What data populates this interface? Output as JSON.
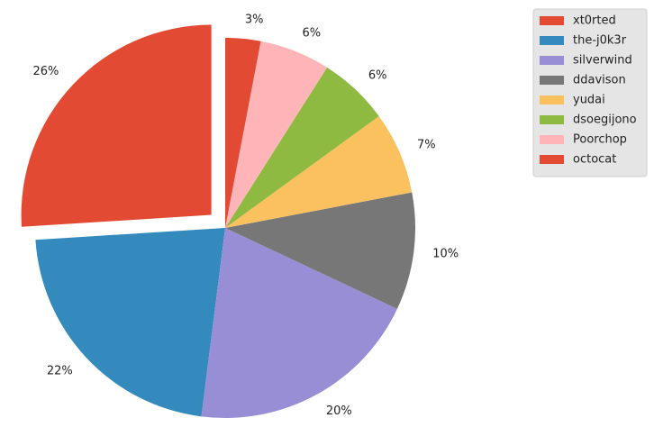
{
  "chart_data": {
    "type": "pie",
    "categories": [
      "xt0rted",
      "the-j0k3r",
      "silverwind",
      "ddavison",
      "yudai",
      "dsoegijono",
      "Poorchop",
      "octocat"
    ],
    "values": [
      26,
      22,
      20,
      10,
      7,
      6,
      6,
      3
    ],
    "value_labels": [
      "26%",
      "22%",
      "20%",
      "10%",
      "7%",
      "6%",
      "6%",
      "3%"
    ],
    "colors": [
      "#E24A33",
      "#348ABD",
      "#988ED5",
      "#777777",
      "#FBC15E",
      "#8EBA42",
      "#FFB5B8",
      "#E24A33"
    ],
    "explode": [
      0.1,
      0,
      0,
      0,
      0,
      0,
      0,
      0
    ],
    "legend": "upper right"
  }
}
